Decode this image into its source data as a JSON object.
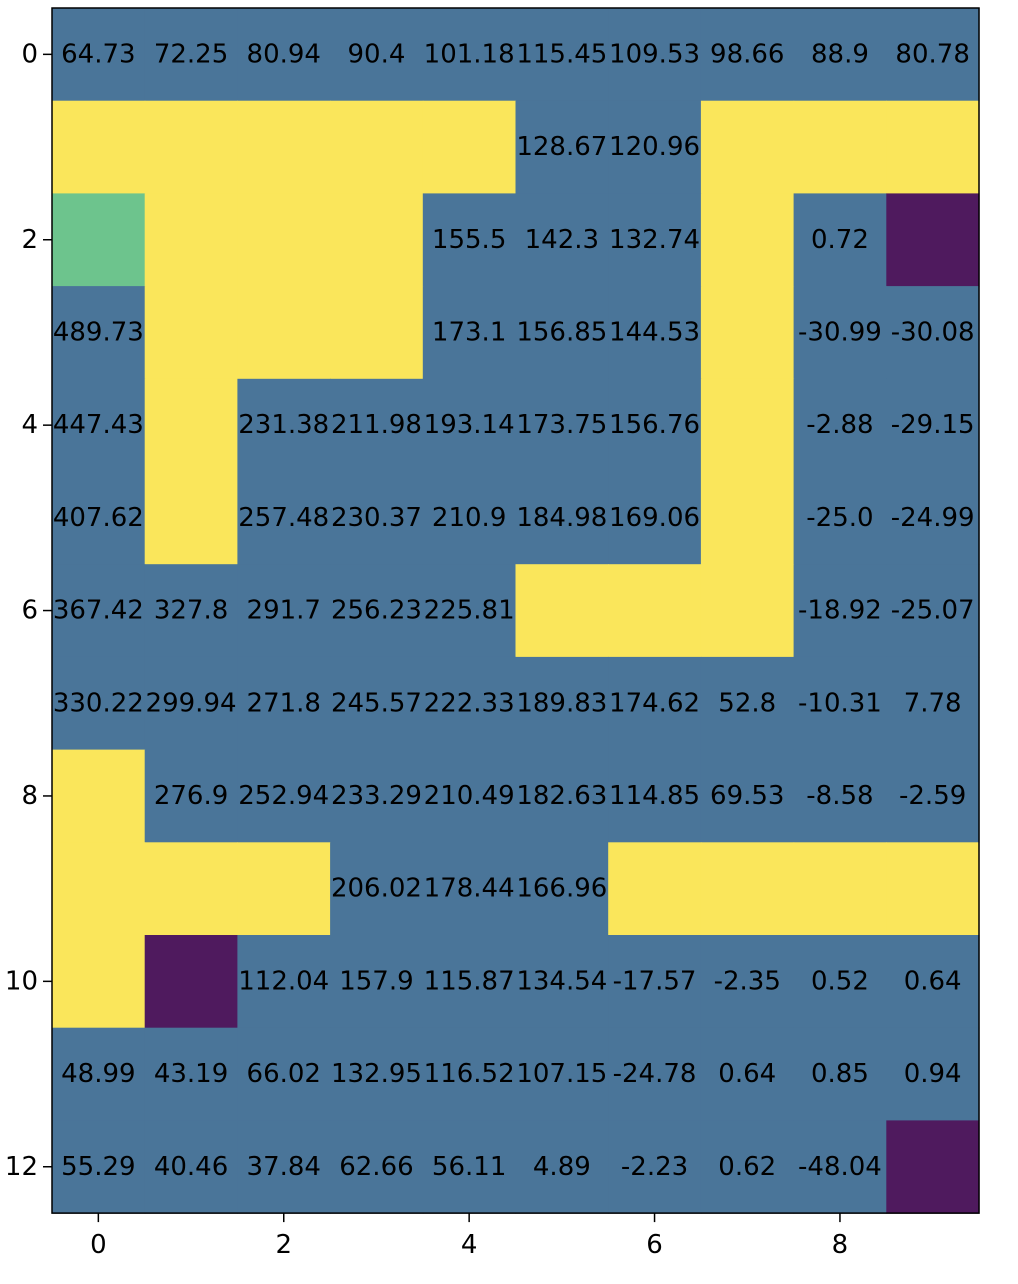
{
  "chart_data": {
    "type": "heatmap",
    "title": "",
    "xlabel": "",
    "ylabel": "",
    "x_ticks": [
      "0",
      "2",
      "4",
      "6",
      "8"
    ],
    "y_ticks": [
      "0",
      "2",
      "4",
      "6",
      "8",
      "10",
      "12"
    ],
    "x_tick_values": [
      0,
      2,
      4,
      6,
      8
    ],
    "y_tick_values": [
      0,
      2,
      4,
      6,
      8,
      10,
      12
    ],
    "n_rows": 13,
    "n_cols": 10,
    "cell_types": [
      [
        "E",
        "E",
        "E",
        "E",
        "E",
        "E",
        "E",
        "E",
        "E",
        "E"
      ],
      [
        "W",
        "W",
        "W",
        "W",
        "W",
        "E",
        "E",
        "W",
        "W",
        "W"
      ],
      [
        "S",
        "W",
        "W",
        "W",
        "E",
        "E",
        "E",
        "W",
        "E",
        "T"
      ],
      [
        "E",
        "W",
        "W",
        "W",
        "E",
        "E",
        "E",
        "W",
        "E",
        "E"
      ],
      [
        "E",
        "W",
        "E",
        "E",
        "E",
        "E",
        "E",
        "W",
        "E",
        "E"
      ],
      [
        "E",
        "W",
        "E",
        "E",
        "E",
        "E",
        "E",
        "W",
        "E",
        "E"
      ],
      [
        "E",
        "E",
        "E",
        "E",
        "E",
        "W",
        "W",
        "W",
        "E",
        "E"
      ],
      [
        "E",
        "E",
        "E",
        "E",
        "E",
        "E",
        "E",
        "E",
        "E",
        "E"
      ],
      [
        "W",
        "E",
        "E",
        "E",
        "E",
        "E",
        "E",
        "E",
        "E",
        "E"
      ],
      [
        "W",
        "W",
        "W",
        "E",
        "E",
        "E",
        "W",
        "W",
        "W",
        "W"
      ],
      [
        "W",
        "T",
        "E",
        "E",
        "E",
        "E",
        "E",
        "E",
        "E",
        "E"
      ],
      [
        "E",
        "E",
        "E",
        "E",
        "E",
        "E",
        "E",
        "E",
        "E",
        "E"
      ],
      [
        "E",
        "E",
        "E",
        "E",
        "E",
        "E",
        "E",
        "E",
        "E",
        "T"
      ]
    ],
    "labels": [
      [
        "64.73",
        "72.25",
        "80.94",
        "90.4",
        "101.18",
        "115.45",
        "109.53",
        "98.66",
        "88.9",
        "80.78"
      ],
      [
        "",
        "",
        "",
        "",
        "",
        "128.67",
        "120.96",
        "",
        "",
        ""
      ],
      [
        "",
        "",
        "",
        "",
        "155.5",
        "142.3",
        "132.74",
        "",
        "0.72",
        ""
      ],
      [
        "489.73",
        "",
        "",
        "",
        "173.1",
        "156.85",
        "144.53",
        "",
        "-30.99",
        "-30.08"
      ],
      [
        "447.43",
        "",
        "231.38",
        "211.98",
        "193.14",
        "173.75",
        "156.76",
        "",
        "-2.88",
        "-29.15"
      ],
      [
        "407.62",
        "",
        "257.48",
        "230.37",
        "210.9",
        "184.98",
        "169.06",
        "",
        "-25.0",
        "-24.99"
      ],
      [
        "367.42",
        "327.8",
        "291.7",
        "256.23",
        "225.81",
        "",
        "",
        "",
        "-18.92",
        "-25.07"
      ],
      [
        "330.22",
        "299.94",
        "271.8",
        "245.57",
        "222.33",
        "189.83",
        "174.62",
        "52.8",
        "-10.31",
        "7.78"
      ],
      [
        "",
        "276.9",
        "252.94",
        "233.29",
        "210.49",
        "182.63",
        "114.85",
        "69.53",
        "-8.58",
        "-2.59"
      ],
      [
        "",
        "",
        "",
        "206.02",
        "178.44",
        "166.96",
        "",
        "",
        "",
        ""
      ],
      [
        "",
        "",
        "112.04",
        "157.9",
        "115.87",
        "134.54",
        "-17.57",
        "-2.35",
        "0.52",
        "0.64"
      ],
      [
        "48.99",
        "43.19",
        "66.02",
        "132.95",
        "116.52",
        "107.15",
        "-24.78",
        "0.64",
        "0.85",
        "0.94"
      ],
      [
        "55.29",
        "40.46",
        "37.84",
        "62.66",
        "56.11",
        "4.89",
        "-2.23",
        "0.62",
        "-48.04",
        ""
      ]
    ],
    "colors": {
      "E": "#4a7599",
      "W": "#fae65b",
      "S": "#6dc48d",
      "T": "#4f1a5e"
    },
    "grid": false,
    "legend": "none"
  }
}
